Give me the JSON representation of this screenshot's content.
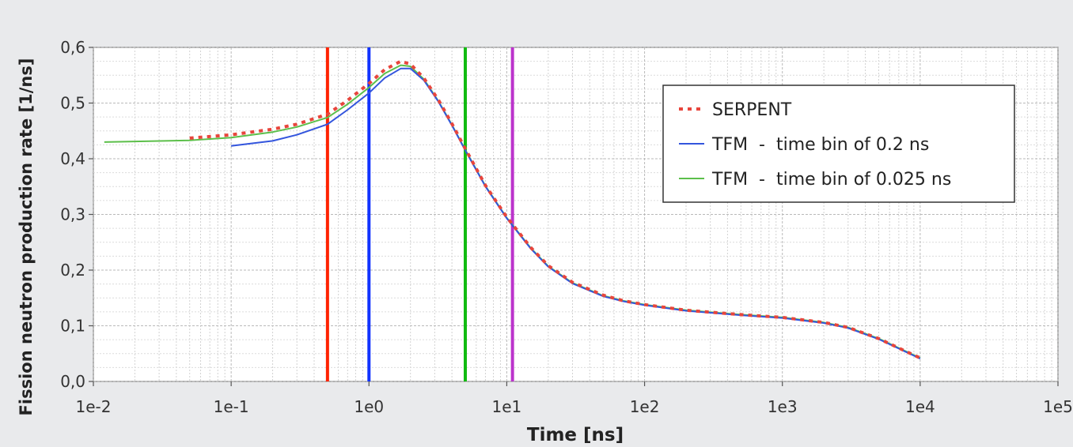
{
  "chart_data": {
    "type": "line",
    "xlabel": "Time [ns]",
    "ylabel": "Fission neutron production rate [1/ns]",
    "x_scale": "log",
    "xlim": [
      0.01,
      100000
    ],
    "ylim": [
      0,
      0.6
    ],
    "x_ticks": [
      {
        "value": 0.01,
        "label": "1e-2"
      },
      {
        "value": 0.1,
        "label": "1e-1"
      },
      {
        "value": 1,
        "label": "1e0"
      },
      {
        "value": 10,
        "label": "1e1"
      },
      {
        "value": 100,
        "label": "1e2"
      },
      {
        "value": 1000,
        "label": "1e3"
      },
      {
        "value": 10000,
        "label": "1e4"
      },
      {
        "value": 100000,
        "label": "1e5"
      }
    ],
    "y_ticks": [
      {
        "value": 0.0,
        "label": "0,0"
      },
      {
        "value": 0.1,
        "label": "0,1"
      },
      {
        "value": 0.2,
        "label": "0,2"
      },
      {
        "value": 0.3,
        "label": "0,3"
      },
      {
        "value": 0.4,
        "label": "0,4"
      },
      {
        "value": 0.5,
        "label": "0,5"
      },
      {
        "value": 0.6,
        "label": "0,6"
      }
    ],
    "grid": true,
    "legend_position": "top-right",
    "series": [
      {
        "name": "SERPENT",
        "style": "dotted",
        "color": "#e8453c",
        "x": [
          0.05,
          0.1,
          0.2,
          0.3,
          0.5,
          0.7,
          1.0,
          1.3,
          1.7,
          2.0,
          2.5,
          3.2,
          4.0,
          5.0,
          7.0,
          10,
          15,
          20,
          30,
          50,
          70,
          100,
          200,
          500,
          1000,
          2000,
          3000,
          5000,
          7000,
          10000
        ],
        "y": [
          0.437,
          0.443,
          0.453,
          0.462,
          0.48,
          0.505,
          0.535,
          0.56,
          0.575,
          0.57,
          0.545,
          0.505,
          0.463,
          0.418,
          0.352,
          0.295,
          0.24,
          0.208,
          0.178,
          0.155,
          0.145,
          0.138,
          0.128,
          0.12,
          0.115,
          0.106,
          0.097,
          0.077,
          0.06,
          0.042
        ]
      },
      {
        "name": "TFM  -  time bin of 0.2 ns",
        "style": "solid",
        "color": "#3355dd",
        "x": [
          0.1,
          0.2,
          0.3,
          0.5,
          0.7,
          1.0,
          1.3,
          1.7,
          2.0,
          2.5,
          3.2,
          4.0,
          5.0,
          7.0,
          10,
          15,
          20,
          30,
          50,
          70,
          100,
          200,
          500,
          1000,
          2000,
          3000,
          5000,
          7000,
          10000
        ],
        "y": [
          0.423,
          0.432,
          0.443,
          0.462,
          0.488,
          0.518,
          0.545,
          0.562,
          0.562,
          0.541,
          0.502,
          0.46,
          0.415,
          0.35,
          0.293,
          0.238,
          0.206,
          0.176,
          0.153,
          0.144,
          0.137,
          0.127,
          0.119,
          0.114,
          0.105,
          0.096,
          0.076,
          0.059,
          0.041
        ]
      },
      {
        "name": "TFM  -  time bin of 0.025 ns",
        "style": "solid",
        "color": "#5cbf4a",
        "x": [
          0.012,
          0.02,
          0.05,
          0.1,
          0.2,
          0.3,
          0.5,
          0.7,
          1.0,
          1.3,
          1.7,
          2.0,
          2.5,
          3.2,
          4.0,
          5.0,
          7.0,
          10,
          15,
          20,
          30,
          50,
          70,
          100,
          200,
          500,
          1000,
          2000,
          3000,
          5000,
          7000,
          10000
        ],
        "y": [
          0.43,
          0.431,
          0.433,
          0.438,
          0.448,
          0.457,
          0.474,
          0.498,
          0.528,
          0.553,
          0.568,
          0.566,
          0.543,
          0.503,
          0.461,
          0.416,
          0.351,
          0.294,
          0.239,
          0.207,
          0.177,
          0.154,
          0.145,
          0.138,
          0.128,
          0.12,
          0.115,
          0.106,
          0.097,
          0.077,
          0.06,
          0.042
        ]
      }
    ],
    "vertical_markers": [
      {
        "x": 0.5,
        "color": "#ff2200"
      },
      {
        "x": 1.0,
        "color": "#1133ff"
      },
      {
        "x": 5.0,
        "color": "#11bb11"
      },
      {
        "x": 11.0,
        "color": "#bb33cc"
      }
    ]
  }
}
